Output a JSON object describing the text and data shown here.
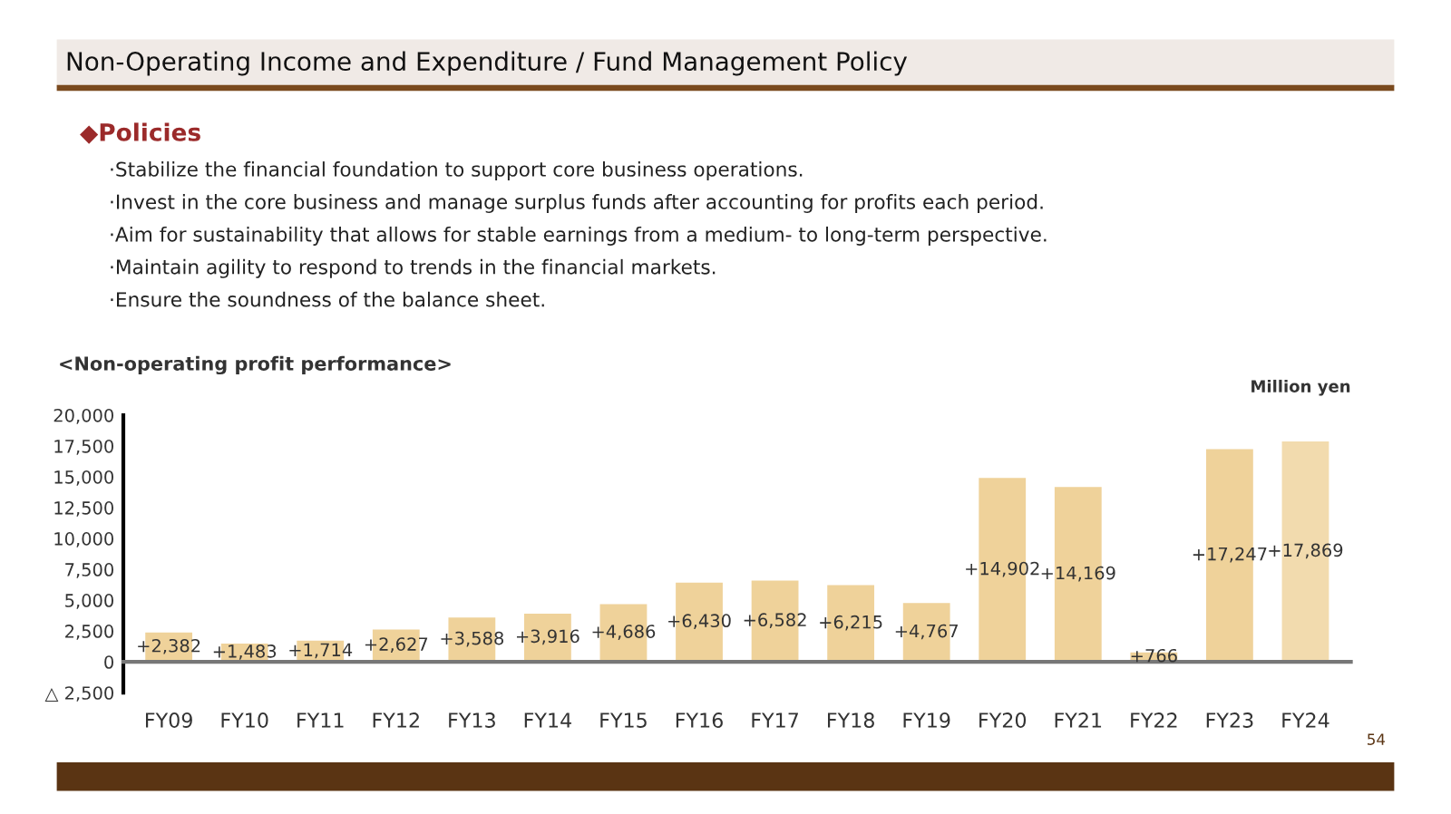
{
  "chart_data": {
    "type": "bar",
    "title": "Non-Operating Income and Expenditure / Fund Management Policy",
    "subtitle": "<Non-operating profit performance>",
    "ylabel": "Million yen",
    "annotations": [
      "◆Policies",
      "·Stabilize the financial foundation to support core business operations.",
      "·Invest in the core business and manage surplus funds after accounting for profits each period.",
      "·Aim for sustainability that allows for stable earnings from a medium- to long-term perspective.",
      "·Maintain agility to respond to trends in the financial markets.",
      "·Ensure the soundness of the balance sheet.",
      "54"
    ],
    "categories": [
      "FY09",
      "FY10",
      "FY11",
      "FY12",
      "FY13",
      "FY14",
      "FY15",
      "FY16",
      "FY17",
      "FY18",
      "FY19",
      "FY20",
      "FY21",
      "FY22",
      "FY23",
      "FY24"
    ],
    "values": [
      2382,
      1483,
      1714,
      2627,
      3588,
      3916,
      4686,
      6430,
      6582,
      6215,
      4767,
      14902,
      14169,
      766,
      17247,
      17869
    ],
    "value_labels": [
      "+2,382",
      "+1,483",
      "+1,714",
      "+2,627",
      "+3,588",
      "+3,916",
      "+4,686",
      "+6,430",
      "+6,582",
      "+6,215",
      "+4,767",
      "+14,902",
      "+14,169",
      "+766",
      "+17,247",
      "+17,869"
    ],
    "colors": [
      "#efd29a",
      "#efd29a",
      "#efd29a",
      "#efd29a",
      "#efd29a",
      "#efd29a",
      "#efd29a",
      "#efd29a",
      "#efd29a",
      "#efd29a",
      "#efd29a",
      "#efd29a",
      "#efd29a",
      "#efd29a",
      "#efd29a",
      "#f2dbae"
    ],
    "ylim": [
      -2500,
      20000
    ],
    "yticks": [
      {
        "value": -2500,
        "label": "△ 2,500"
      },
      0,
      {
        "value": 2500,
        "label": "2,500"
      },
      {
        "value": 5000,
        "label": "5,000"
      },
      {
        "value": 7500,
        "label": "7,500"
      },
      {
        "value": 10000,
        "label": "10,000"
      },
      {
        "value": 12500,
        "label": "12,500"
      },
      {
        "value": 15000,
        "label": "15,000"
      },
      {
        "value": 17500,
        "label": "17,500"
      },
      {
        "value": 20000,
        "label": "20,000"
      }
    ],
    "grid": false,
    "legend": false
  }
}
